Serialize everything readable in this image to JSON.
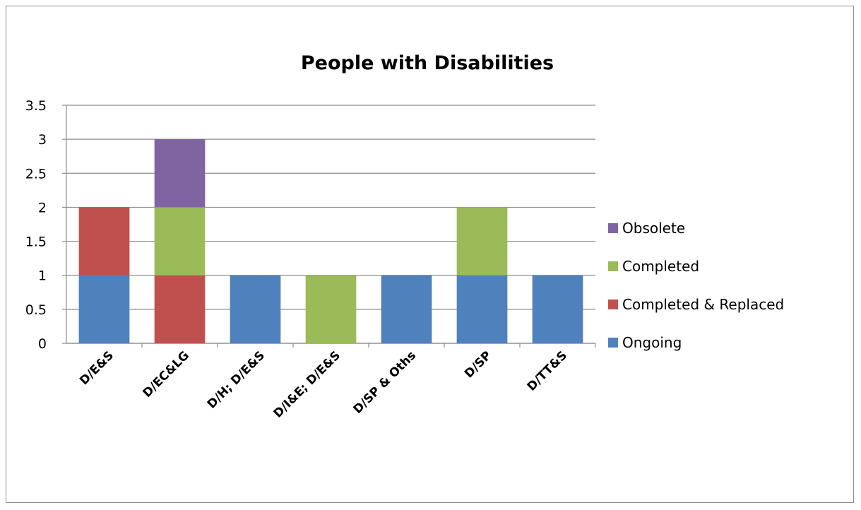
{
  "chart_data": {
    "type": "bar",
    "stacked": true,
    "title": "People with Disabilities",
    "xlabel": "",
    "ylabel": "",
    "ylim": [
      0,
      3.5
    ],
    "yticks": [
      "0",
      "0.5",
      "1",
      "1.5",
      "2",
      "2.5",
      "3",
      "3.5"
    ],
    "grid": true,
    "legend_position": "right",
    "categories": [
      "D/E&S",
      "D/EC&LG",
      "D/H; D/E&S",
      "D/I&E; D/E&S",
      "D/SP & Oths",
      "D/SP",
      "D/TT&S"
    ],
    "series": [
      {
        "name": "Ongoing",
        "color": "#4f81bd",
        "values": [
          1,
          0,
          1,
          0,
          1,
          1,
          1
        ]
      },
      {
        "name": "Completed & Replaced",
        "color": "#c0504d",
        "values": [
          1,
          1,
          0,
          0,
          0,
          0,
          0
        ]
      },
      {
        "name": "Completed",
        "color": "#9bbb59",
        "values": [
          0,
          1,
          0,
          1,
          0,
          1,
          0
        ]
      },
      {
        "name": "Obsolete",
        "color": "#8064a2",
        "values": [
          0,
          1,
          0,
          0,
          0,
          0,
          0
        ]
      }
    ]
  }
}
